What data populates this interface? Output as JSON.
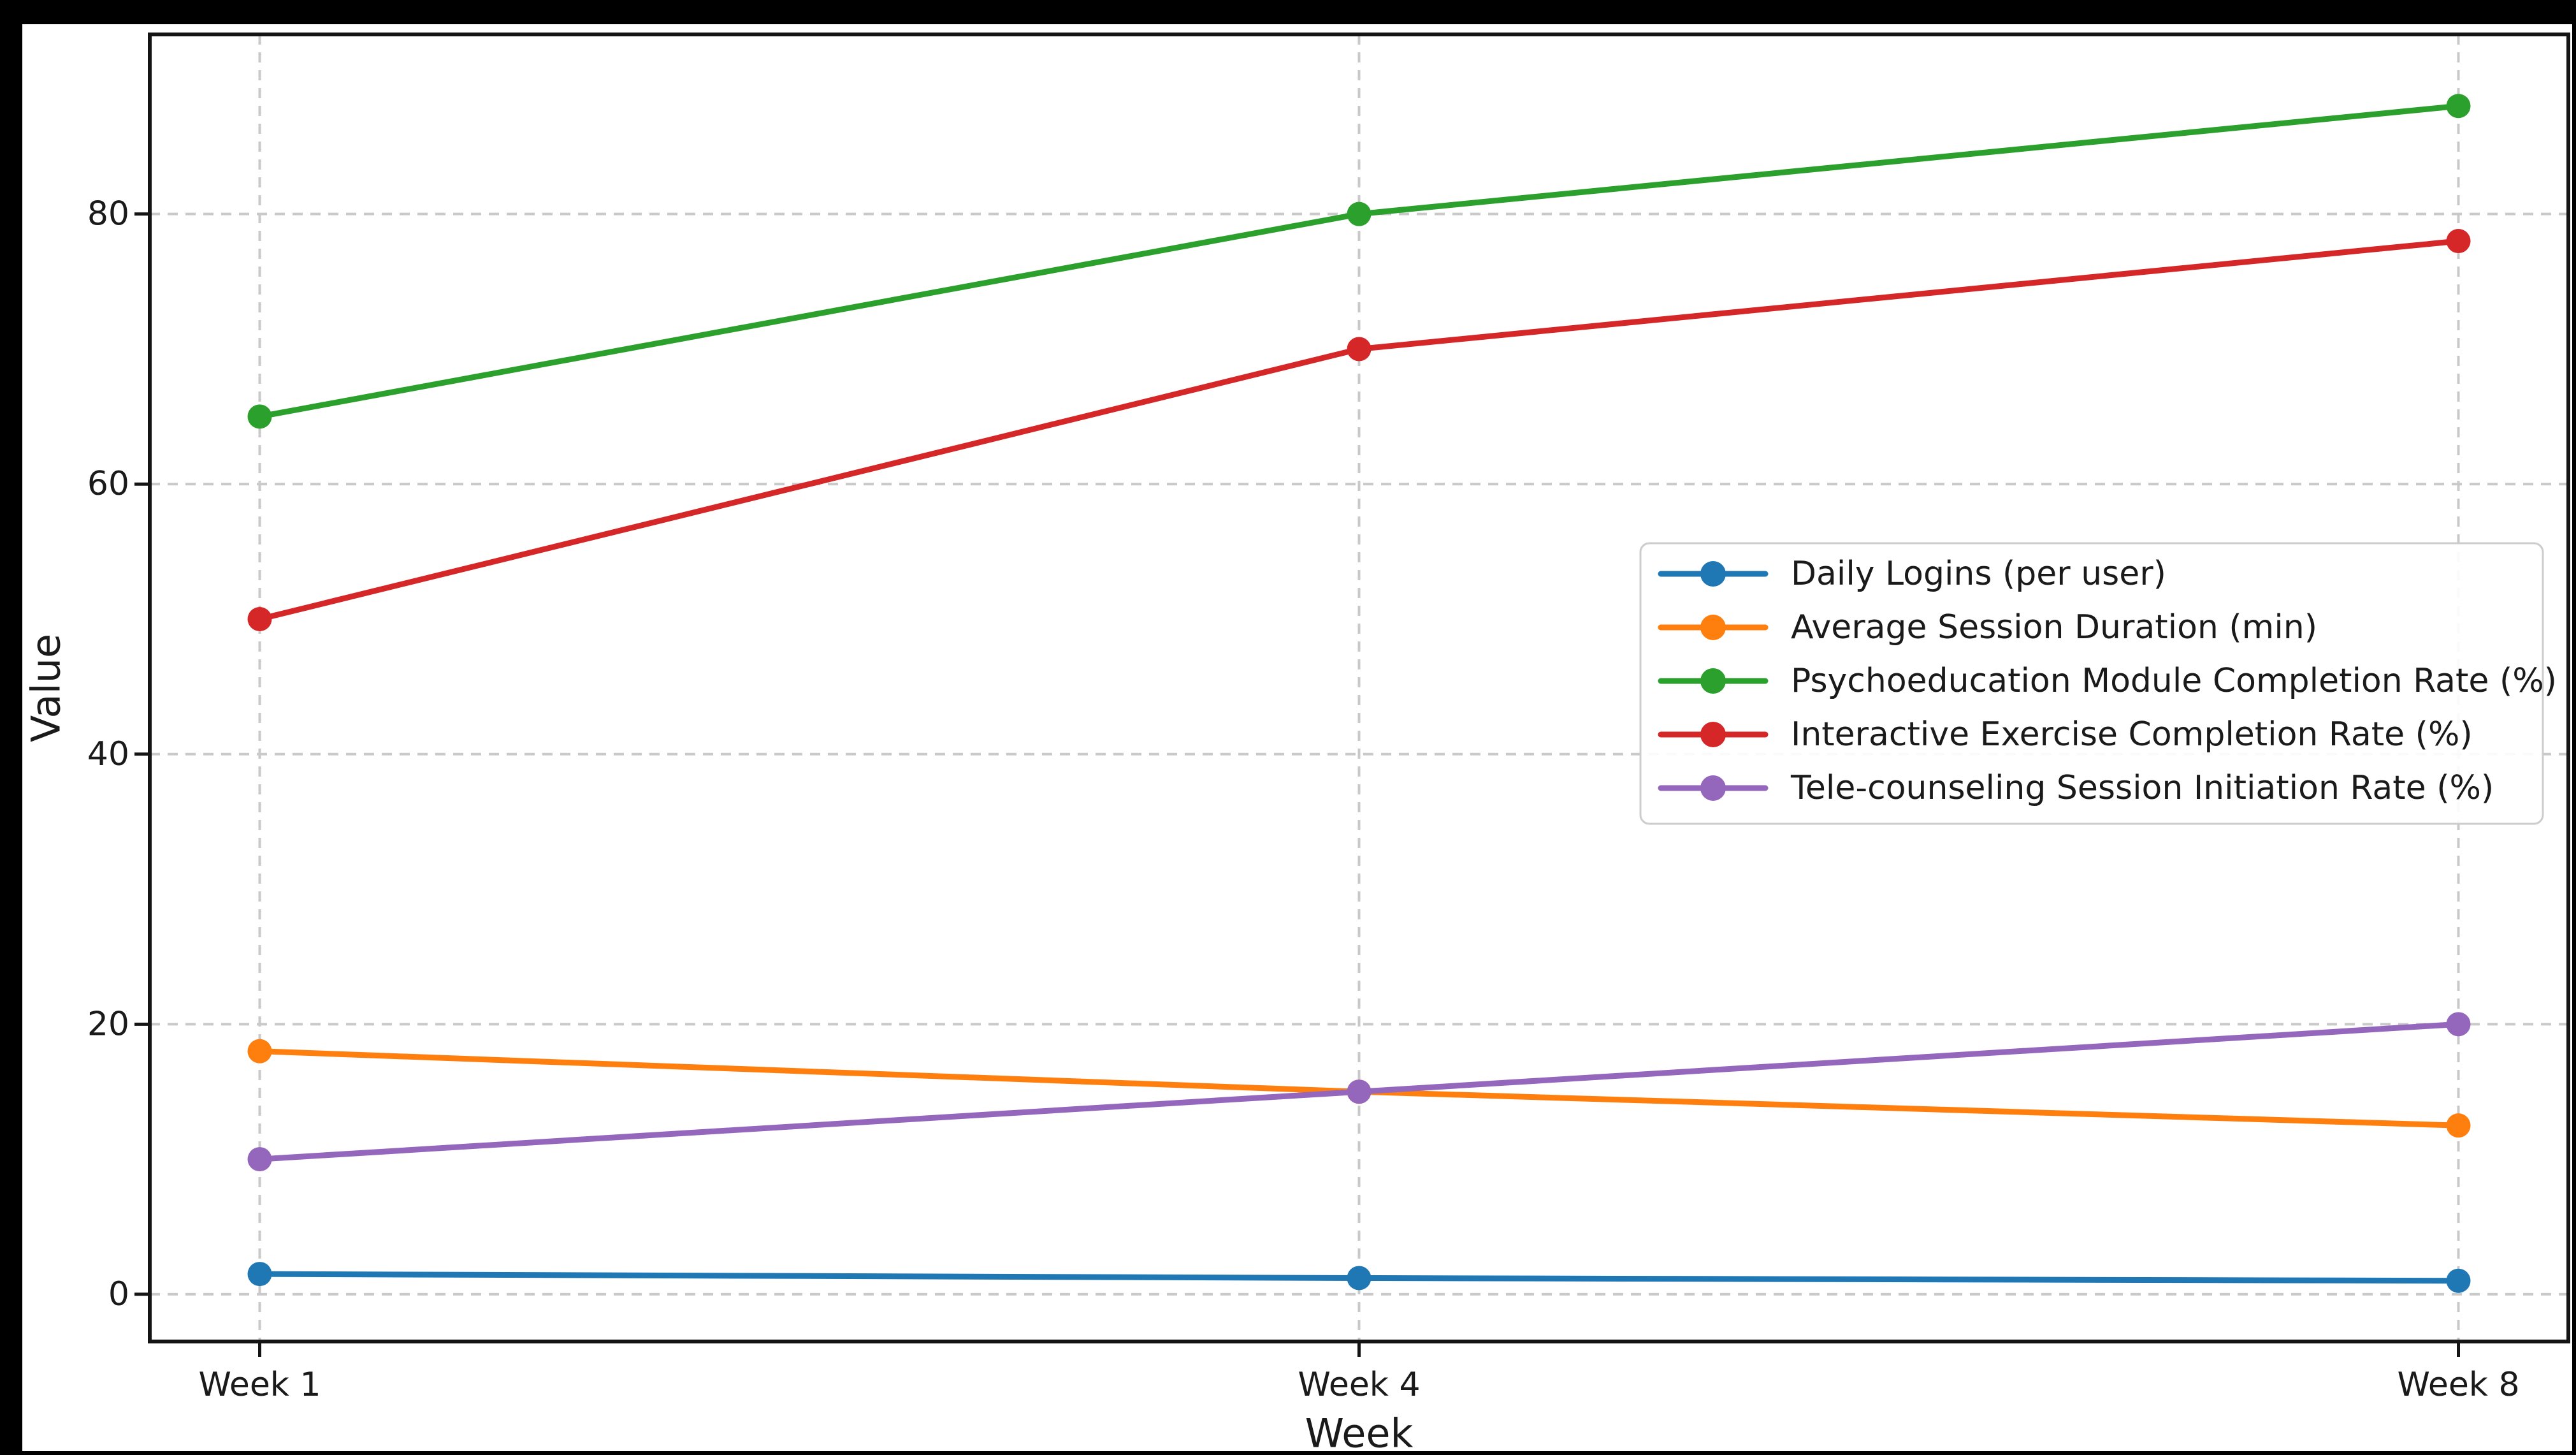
{
  "chart_data": {
    "type": "line",
    "title": "",
    "xlabel": "Week",
    "ylabel": "Value",
    "categories": [
      "Week 1",
      "Week 4",
      "Week 8"
    ],
    "series": [
      {
        "name": "Daily Logins (per user)",
        "color": "#1f77b4",
        "values": [
          1.5,
          1.2,
          1.0
        ]
      },
      {
        "name": "Average Session Duration (min)",
        "color": "#ff7f0e",
        "values": [
          18,
          15,
          12.5
        ]
      },
      {
        "name": "Psychoeducation Module Completion Rate (%)",
        "color": "#2ca02c",
        "values": [
          65,
          80,
          88
        ]
      },
      {
        "name": "Interactive Exercise Completion Rate (%)",
        "color": "#d62728",
        "values": [
          50,
          70,
          78
        ]
      },
      {
        "name": "Tele-counseling Session Initiation Rate (%)",
        "color": "#9467bd",
        "values": [
          10,
          15,
          20
        ]
      }
    ],
    "yticks": [
      0,
      20,
      40,
      60,
      80
    ],
    "ylim": [
      -3.5,
      93.3
    ],
    "grid": true,
    "grid_style": "dashed",
    "legend_position": "center right",
    "marker": "circle"
  },
  "colors": {
    "page_background": "#000000",
    "figure_background": "#ffffff",
    "grid": "#c9c9c9",
    "spine": "#141414",
    "text": "#1a1a1a",
    "legend_background": "#ffffff",
    "legend_border": "#cccccc"
  }
}
